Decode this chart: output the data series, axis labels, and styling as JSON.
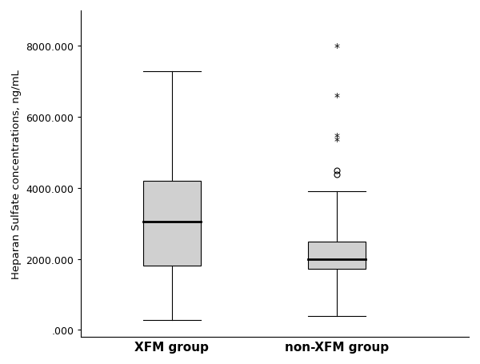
{
  "groups": [
    "XFM group",
    "non-XFM group"
  ],
  "xfm": {
    "whisker_low": 280000,
    "q1": 1820000,
    "median": 3050000,
    "q3": 4200000,
    "whisker_high": 7280000,
    "flier_circles": [],
    "flier_stars": []
  },
  "nonxfm": {
    "whisker_low": 390000,
    "q1": 1720000,
    "median": 1980000,
    "q3": 2480000,
    "whisker_high": 3900000,
    "flier_circles": [
      4370000,
      4490000
    ],
    "flier_stars": [
      5320000,
      5430000,
      6560000,
      7960000
    ]
  },
  "ylim": [
    -200000,
    9000000
  ],
  "yticks": [
    0,
    2000000,
    4000000,
    6000000,
    8000000
  ],
  "ytick_labels": [
    ".000",
    "2000.000",
    "4000.000",
    "6000.000",
    "8000.000"
  ],
  "ylabel": "Heparan Sulfate concentrations, ng/mL",
  "box_color": "#d0d0d0",
  "box_width": 0.35,
  "median_color": "#000000",
  "whisker_color": "#000000",
  "cap_color": "#000000",
  "background_color": "#ffffff",
  "x_positions": [
    1,
    2
  ],
  "xlim": [
    0.45,
    2.8
  ]
}
